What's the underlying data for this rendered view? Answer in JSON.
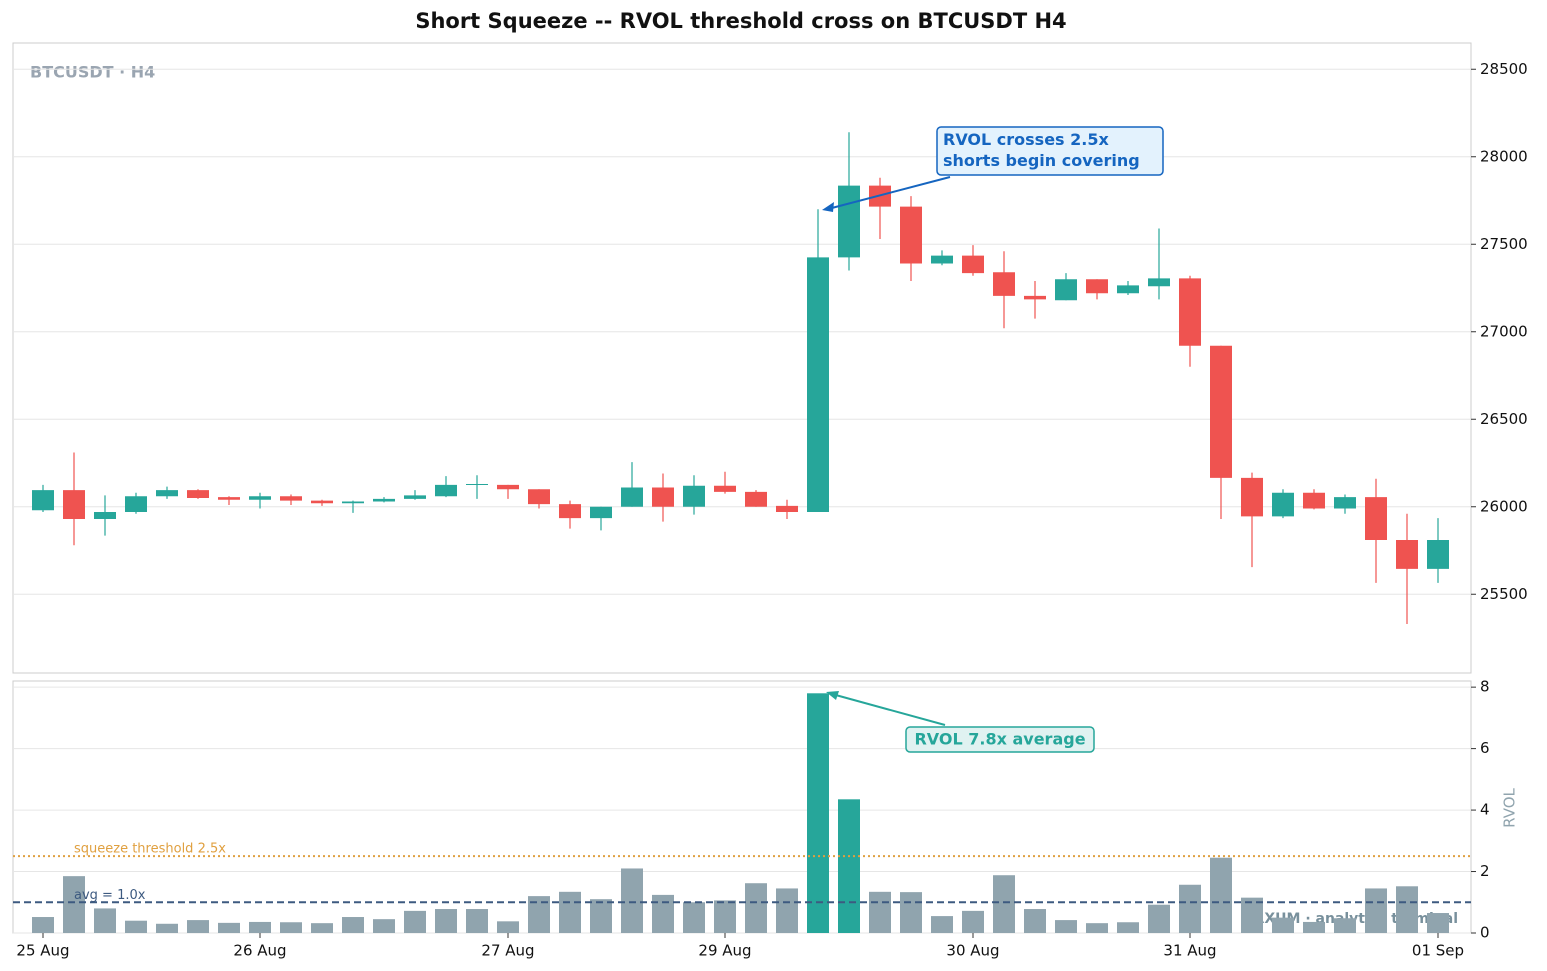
{
  "chart_data": [
    {
      "type": "candlestick",
      "title": "Short Squeeze -- RVOL threshold cross on BTCUSDT H4",
      "watermark": "BTCUSDT · H4",
      "up_color": "#26a69a",
      "down_color": "#ef5350",
      "open": [
        25980,
        26095,
        25930,
        25970,
        26060,
        26095,
        26055,
        26040,
        26060,
        26035,
        26020,
        26030,
        26045,
        26060,
        26125,
        26125,
        26100,
        26015,
        25935,
        26000,
        26110,
        26000,
        26120,
        26085,
        26005,
        25970,
        27425,
        27835,
        27715,
        27390,
        27435,
        27340,
        27205,
        27180,
        27300,
        27220,
        27260,
        27305,
        26920,
        26165,
        25945,
        26080,
        25990,
        26055,
        25810,
        25645
      ],
      "high": [
        26125,
        26310,
        26065,
        26080,
        26115,
        26100,
        26060,
        26080,
        26070,
        26040,
        26035,
        26055,
        26095,
        26175,
        26180,
        26125,
        26100,
        26035,
        26000,
        26255,
        26190,
        26180,
        26200,
        26095,
        26040,
        27700,
        28140,
        27880,
        27775,
        27465,
        27495,
        27460,
        27290,
        27335,
        27300,
        27290,
        27590,
        27320,
        26920,
        26195,
        26100,
        26100,
        26070,
        26160,
        25960,
        25935
      ],
      "low": [
        25970,
        25780,
        25835,
        25960,
        26045,
        26045,
        26010,
        25990,
        26010,
        26005,
        25965,
        26025,
        26040,
        26055,
        26045,
        26045,
        25990,
        25875,
        25865,
        26000,
        25915,
        25955,
        26075,
        26000,
        25930,
        25970,
        27350,
        27530,
        27290,
        27380,
        27320,
        27020,
        27075,
        27180,
        27185,
        27210,
        27185,
        26800,
        25930,
        25655,
        25935,
        25985,
        25960,
        25565,
        25330,
        25565
      ],
      "close": [
        26095,
        25930,
        25970,
        26060,
        26095,
        26050,
        26040,
        26060,
        26035,
        26020,
        26030,
        26045,
        26065,
        26125,
        26130,
        26100,
        26015,
        25935,
        26000,
        26110,
        26000,
        26120,
        26085,
        26000,
        25970,
        27425,
        27835,
        27715,
        27390,
        27435,
        27335,
        27205,
        27185,
        27300,
        27220,
        27265,
        27305,
        26920,
        26165,
        25945,
        26080,
        25990,
        26055,
        25810,
        25645,
        25810
      ],
      "ylim": [
        25050,
        28650
      ],
      "yticks": [
        25500,
        26000,
        26500,
        27000,
        27500,
        28000,
        28500
      ],
      "grid": true,
      "annotation": [
        "RVOL crosses 2.5x",
        "shorts begin covering"
      ],
      "annotation_color": "#1565c0"
    },
    {
      "type": "bar",
      "ylabel": "RVOL",
      "watermark": "ARXUM · analytics terminal",
      "categories": [
        "25 Aug",
        null,
        null,
        null,
        null,
        null,
        null,
        "26 Aug",
        null,
        null,
        null,
        null,
        null,
        null,
        null,
        "27 Aug",
        null,
        null,
        null,
        null,
        null,
        null,
        "29 Aug",
        null,
        null,
        null,
        null,
        null,
        null,
        null,
        "30 Aug",
        null,
        null,
        null,
        null,
        null,
        null,
        "31 Aug",
        null,
        null,
        null,
        null,
        null,
        null,
        null,
        "01 Sep"
      ],
      "values": [
        0.52,
        1.85,
        0.8,
        0.4,
        0.3,
        0.42,
        0.33,
        0.36,
        0.35,
        0.32,
        0.52,
        0.45,
        0.72,
        0.78,
        0.78,
        0.38,
        1.2,
        1.34,
        1.1,
        2.1,
        1.24,
        1.0,
        1.06,
        1.62,
        1.45,
        7.8,
        4.35,
        1.34,
        1.33,
        0.55,
        0.72,
        1.88,
        0.78,
        0.42,
        0.32,
        0.35,
        0.92,
        1.57,
        2.45,
        1.15,
        0.5,
        0.36,
        0.48,
        1.45,
        1.52,
        0.65
      ],
      "color": "#90a4ae",
      "highlight_color": "#26a69a",
      "ylim": [
        0,
        8.2
      ],
      "yticks": [
        0,
        2,
        4,
        6,
        8
      ],
      "grid": true,
      "threshold": {
        "value": 2.5,
        "label": "squeeze threshold 2.5x",
        "color": "#e0a040"
      },
      "average": {
        "value": 1.0,
        "label": "avg = 1.0x",
        "color": "#3d5a80"
      },
      "annotation": "RVOL 7.8x average"
    }
  ]
}
